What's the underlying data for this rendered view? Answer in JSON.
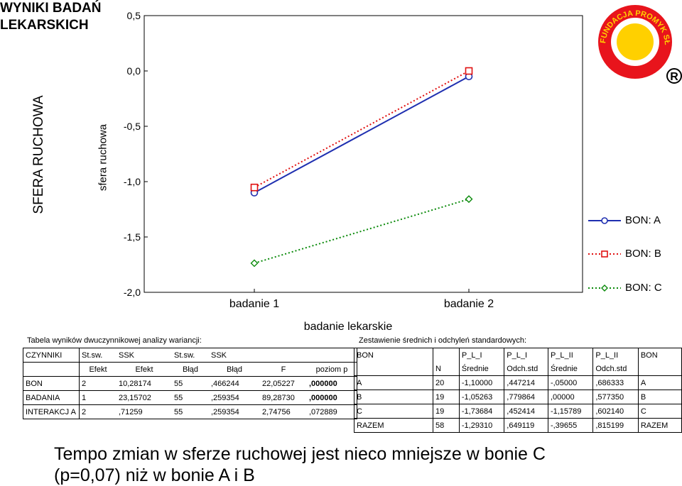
{
  "page": {
    "title": "WYNIKI BADAŃ LEKARSKICH",
    "section_label": "SFERA RUCHOWA",
    "conclusion_line1": "Tempo zmian w sferze ruchowej jest nieco mniejsze w bonie C",
    "conclusion_line2": "(p=0,07)  niż w bonie A i B"
  },
  "logo": {
    "text": "FUNDACJA PROMYK SŁOŃCA",
    "registered_mark": "R"
  },
  "colors": {
    "series_a": "#1f2fb0",
    "series_b": "#e01010",
    "series_c": "#0a8a0a",
    "logo_red": "#e8141c",
    "logo_yellow": "#ffd000"
  },
  "chart_data": {
    "type": "line",
    "title": "",
    "xlabel": "badanie lekarskie",
    "ylabel": "sfera ruchowa",
    "categories": [
      "badanie 1",
      "badanie 2"
    ],
    "ylim": [
      -2.0,
      0.5
    ],
    "yticks": [
      0.5,
      0.0,
      -0.5,
      -1.0,
      -1.5,
      -2.0
    ],
    "ytick_labels": [
      "0,5",
      "0,0",
      "-0,5",
      "-1,0",
      "-1,5",
      "-2,0"
    ],
    "grid": false,
    "legend_position": "right",
    "series": [
      {
        "name": "BON: A",
        "values": [
          -1.1,
          -0.05
        ],
        "marker": "circle",
        "linestyle": "solid"
      },
      {
        "name": "BON: B",
        "values": [
          -1.05263,
          0.0
        ],
        "marker": "square",
        "linestyle": "dotted"
      },
      {
        "name": "BON: C",
        "values": [
          -1.73684,
          -1.15789
        ],
        "marker": "diamond",
        "linestyle": "dotted"
      }
    ]
  },
  "anova": {
    "caption": "Tabela wyników dwuczynnikowej analizy wariancji:",
    "header1": [
      "CZYNNIKI",
      "St.sw.",
      "SSK",
      "St.sw.",
      "SSK",
      "",
      ""
    ],
    "header2": [
      "",
      "Efekt",
      "Efekt",
      "Błąd",
      "Błąd",
      "F",
      "poziom p"
    ],
    "rows": [
      [
        "BON",
        "2",
        "10,28174",
        "55",
        ",466244",
        "22,05227",
        ",000000"
      ],
      [
        "BADANIA",
        "1",
        "23,15702",
        "55",
        ",259354",
        "89,28730",
        ",000000"
      ],
      [
        "INTERAKCJ A",
        "2",
        ",71259",
        "55",
        ",259354",
        "2,74756",
        ",072889"
      ]
    ]
  },
  "summary": {
    "caption": "Zestawienie średnich i odchyleń standardowych:",
    "header1": [
      "BON",
      "",
      "P_L_I",
      "P_L_I",
      "P_L_II",
      "P_L_II",
      "BON"
    ],
    "header2": [
      "",
      "N",
      "Średnie",
      "Odch.std",
      "Średnie",
      "Odch.std",
      ""
    ],
    "rows": [
      [
        "A",
        "20",
        "-1,10000",
        ",447214",
        "-,05000",
        ",686333",
        "A"
      ],
      [
        "B",
        "19",
        "-1,05263",
        ",779864",
        ",00000",
        ",577350",
        "B"
      ],
      [
        "C",
        "19",
        "-1,73684",
        ",452414",
        "-1,15789",
        ",602140",
        "C"
      ],
      [
        "RAZEM",
        "58",
        "-1,29310",
        ",649119",
        "-,39655",
        ",815199",
        "RAZEM"
      ]
    ]
  }
}
